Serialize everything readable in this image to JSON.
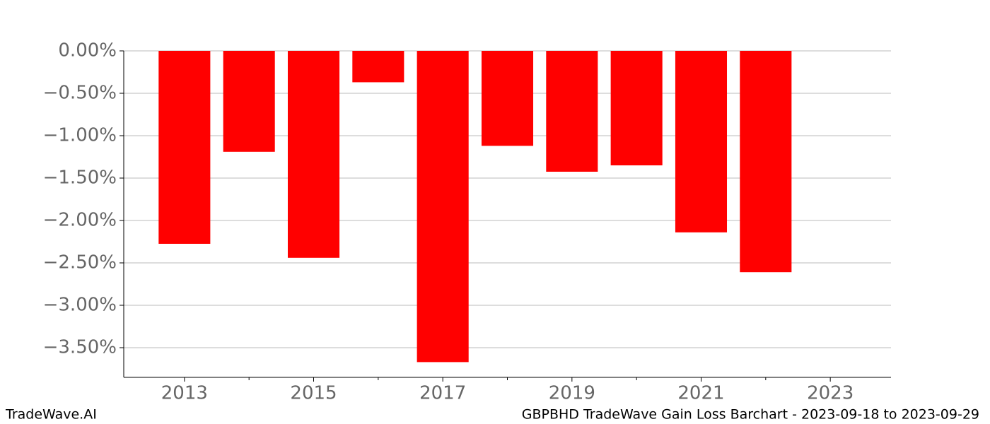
{
  "chart_data": {
    "type": "bar",
    "x": [
      2013,
      2014,
      2015,
      2016,
      2017,
      2018,
      2019,
      2020,
      2021,
      2022
    ],
    "values": [
      -2.275,
      -1.19,
      -2.44,
      -0.37,
      -3.67,
      -1.12,
      -1.425,
      -1.35,
      -2.14,
      -2.61
    ],
    "color": "#ff0000",
    "xlim": [
      2012.06,
      2023.94
    ],
    "xticks": [
      2013,
      2015,
      2017,
      2019,
      2021,
      2023
    ],
    "xminorticks": [
      2014,
      2016,
      2018,
      2020,
      2022
    ],
    "ylim": [
      -3.85,
      0
    ],
    "yticks": [
      {
        "value": 0,
        "label": "0.00%"
      },
      {
        "value": -0.5,
        "label": "−0.50%"
      },
      {
        "value": -1,
        "label": "−1.00%"
      },
      {
        "value": -1.5,
        "label": "−1.50%"
      },
      {
        "value": -2,
        "label": "−2.00%"
      },
      {
        "value": -2.5,
        "label": "−2.50%"
      },
      {
        "value": -3,
        "label": "−3.00%"
      },
      {
        "value": -3.5,
        "label": "−3.50%"
      }
    ],
    "grid": true,
    "footer_left": "TradeWave.AI",
    "footer_right": "GBPBHD TradeWave Gain Loss Barchart - 2023-09-18 to 2023-09-29"
  }
}
